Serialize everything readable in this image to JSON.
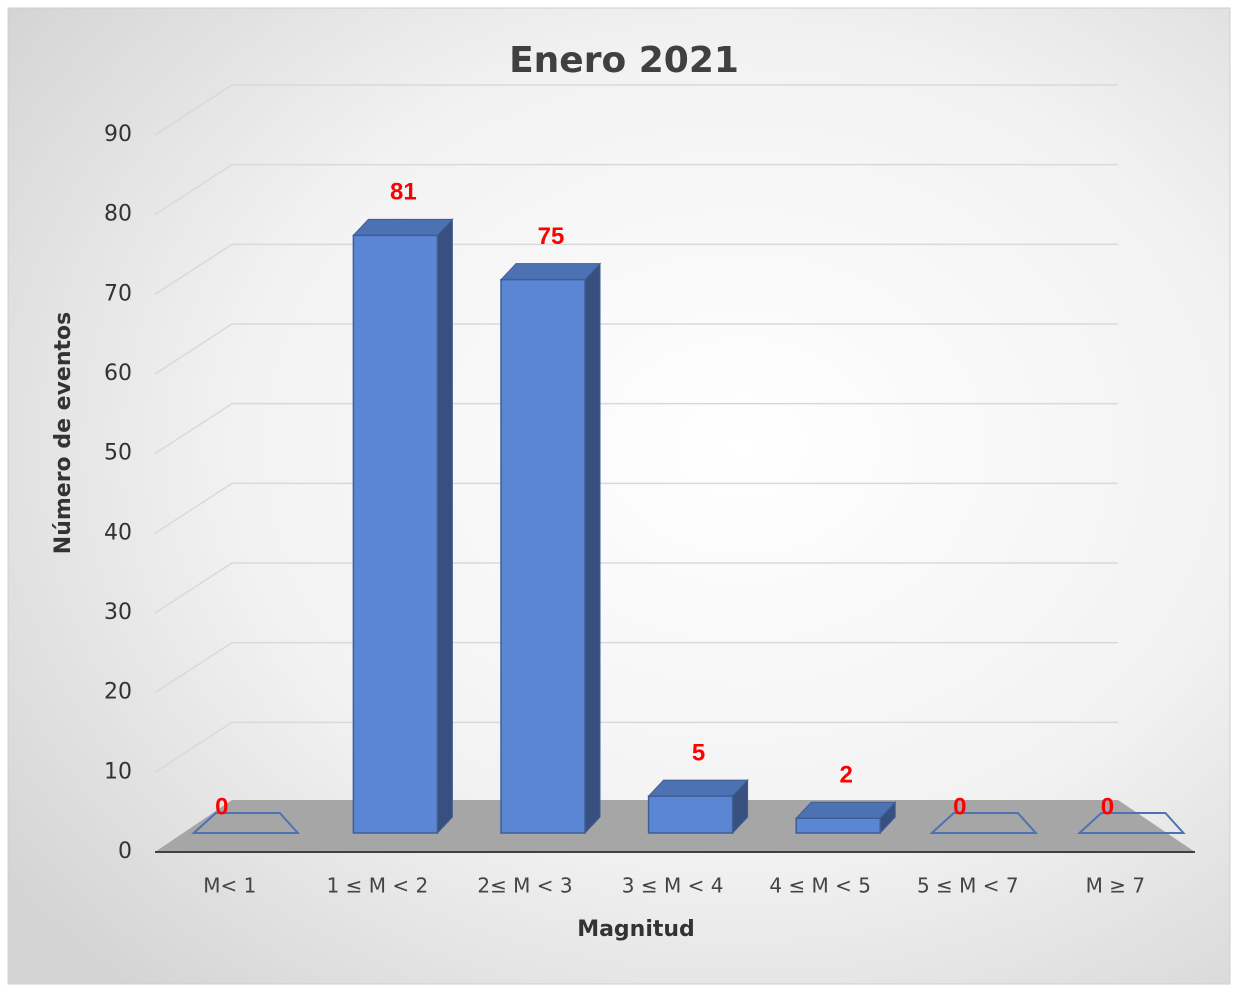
{
  "chart_data": {
    "type": "bar3d",
    "title": "Enero 2021",
    "x_label": "Magnitud",
    "y_label": "Número de eventos",
    "categories": [
      "M< 1",
      "1 ≤ M < 2",
      "2≤ M < 3",
      "3 ≤ M < 4",
      "4 ≤ M < 5",
      "5 ≤ M < 7",
      "M ≥ 7"
    ],
    "values": [
      0,
      81,
      75,
      5,
      2,
      0,
      0
    ],
    "color": "#5b86d4",
    "label_color": "#ff0000",
    "ylim": [
      0,
      90
    ],
    "yticks": [
      0,
      10,
      20,
      30,
      40,
      50,
      60,
      70,
      80,
      90
    ],
    "grid": true
  }
}
